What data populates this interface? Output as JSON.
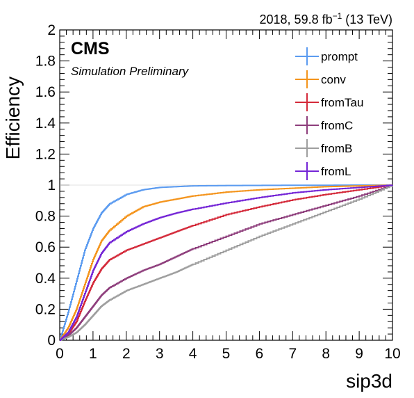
{
  "chart_data": {
    "type": "line",
    "title": "",
    "xlabel": "sip3d",
    "ylabel": "Efficiency",
    "xlim": [
      0,
      10
    ],
    "ylim": [
      0,
      2
    ],
    "x_ticks": [
      0,
      1,
      2,
      3,
      4,
      5,
      6,
      7,
      8,
      9,
      10
    ],
    "y_ticks": [
      0,
      0.2,
      0.4,
      0.6,
      0.8,
      1,
      1.2,
      1.4,
      1.6,
      1.8,
      2
    ],
    "x_tick_labels": [
      "0",
      "1",
      "2",
      "3",
      "4",
      "5",
      "6",
      "7",
      "8",
      "9",
      "10"
    ],
    "y_tick_labels": [
      "0",
      "0.2",
      "0.4",
      "0.6",
      "0.8",
      "1",
      "1.2",
      "1.4",
      "1.6",
      "1.8",
      "2"
    ],
    "legend_position": "top-right",
    "annotations": {
      "experiment": "CMS",
      "status": "Simulation Preliminary",
      "lumi_prefix": "2018, 59.8 fb",
      "lumi_exponent": "−1",
      "lumi_suffix": " (13 TeV)"
    },
    "x": [
      0,
      0.25,
      0.5,
      0.75,
      1,
      1.25,
      1.5,
      2,
      2.5,
      3,
      3.5,
      4,
      5,
      6,
      7,
      8,
      9,
      10
    ],
    "series": [
      {
        "name": "prompt",
        "color": "#5b9bf0",
        "values": [
          0,
          0.18,
          0.38,
          0.58,
          0.72,
          0.82,
          0.88,
          0.94,
          0.97,
          0.985,
          0.99,
          0.995,
          0.997,
          0.998,
          0.999,
          0.999,
          1.0,
          1.0
        ]
      },
      {
        "name": "conv",
        "color": "#f4941c",
        "values": [
          0,
          0.08,
          0.2,
          0.36,
          0.52,
          0.64,
          0.71,
          0.8,
          0.86,
          0.89,
          0.91,
          0.93,
          0.955,
          0.97,
          0.98,
          0.99,
          0.995,
          1.0
        ]
      },
      {
        "name": "fromTau",
        "color": "#d42a3a",
        "values": [
          0,
          0.04,
          0.12,
          0.25,
          0.37,
          0.46,
          0.52,
          0.58,
          0.62,
          0.66,
          0.7,
          0.74,
          0.81,
          0.86,
          0.905,
          0.94,
          0.97,
          1.0
        ]
      },
      {
        "name": "fromC",
        "color": "#8e3e7c",
        "values": [
          0,
          0.03,
          0.08,
          0.15,
          0.22,
          0.29,
          0.34,
          0.4,
          0.45,
          0.49,
          0.54,
          0.59,
          0.67,
          0.75,
          0.81,
          0.87,
          0.93,
          1.0
        ]
      },
      {
        "name": "fromB",
        "color": "#9e9e9e",
        "values": [
          0,
          0.02,
          0.05,
          0.1,
          0.16,
          0.22,
          0.26,
          0.32,
          0.36,
          0.4,
          0.44,
          0.49,
          0.58,
          0.67,
          0.75,
          0.83,
          0.91,
          1.0
        ]
      },
      {
        "name": "fromL",
        "color": "#7425d6",
        "values": [
          0,
          0.05,
          0.15,
          0.3,
          0.45,
          0.56,
          0.63,
          0.7,
          0.75,
          0.79,
          0.82,
          0.845,
          0.885,
          0.92,
          0.95,
          0.97,
          0.985,
          1.0
        ]
      }
    ]
  }
}
